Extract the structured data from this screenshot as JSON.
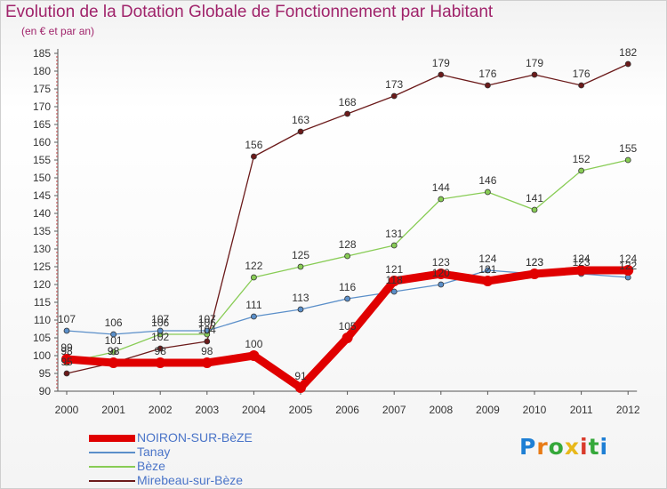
{
  "chart_data": {
    "type": "line",
    "title": "Evolution de la Dotation Globale de Fonctionnement par Habitant",
    "subtitle": "(en € et par an)",
    "xlabel": "",
    "ylabel": "",
    "categories": [
      "2000",
      "2001",
      "2002",
      "2003",
      "2004",
      "2005",
      "2006",
      "2007",
      "2008",
      "2009",
      "2010",
      "2011",
      "2012"
    ],
    "yticks": [
      "90",
      "95",
      "100",
      "105",
      "110",
      "115",
      "120",
      "125",
      "130",
      "135",
      "140",
      "145",
      "150",
      "155",
      "160",
      "165",
      "170",
      "175",
      "180",
      "185"
    ],
    "ylim": [
      90,
      185
    ],
    "grid": false,
    "legend": "bottom-left",
    "series": [
      {
        "name": "NOIRON-SUR-BèZE",
        "color": "#e00000",
        "values": [
          99,
          98,
          98,
          98,
          100,
          91,
          105,
          121,
          123,
          121,
          123,
          124,
          124
        ]
      },
      {
        "name": "Tanay",
        "color": "#5b8fc9",
        "values": [
          107,
          106,
          107,
          107,
          111,
          113,
          116,
          118,
          120,
          124,
          123,
          123,
          122
        ]
      },
      {
        "name": "Bèze",
        "color": "#88cc55",
        "values": [
          98,
          101,
          106,
          106,
          122,
          125,
          128,
          131,
          144,
          146,
          141,
          152,
          155
        ]
      },
      {
        "name": "Mirebeau-sur-Bèze",
        "color": "#6b1a1a",
        "values": [
          95,
          98,
          102,
          104,
          156,
          163,
          168,
          173,
          179,
          176,
          179,
          176,
          182
        ]
      }
    ]
  },
  "brand": {
    "text": "Proxiti",
    "letters": [
      "P",
      "r",
      "o",
      "x",
      "i",
      "t",
      "i"
    ],
    "colors": [
      "#1e7fd4",
      "#e87b15",
      "#35a83a",
      "#e8b81a",
      "#d93b2b",
      "#35a83a",
      "#1e7fd4"
    ]
  }
}
